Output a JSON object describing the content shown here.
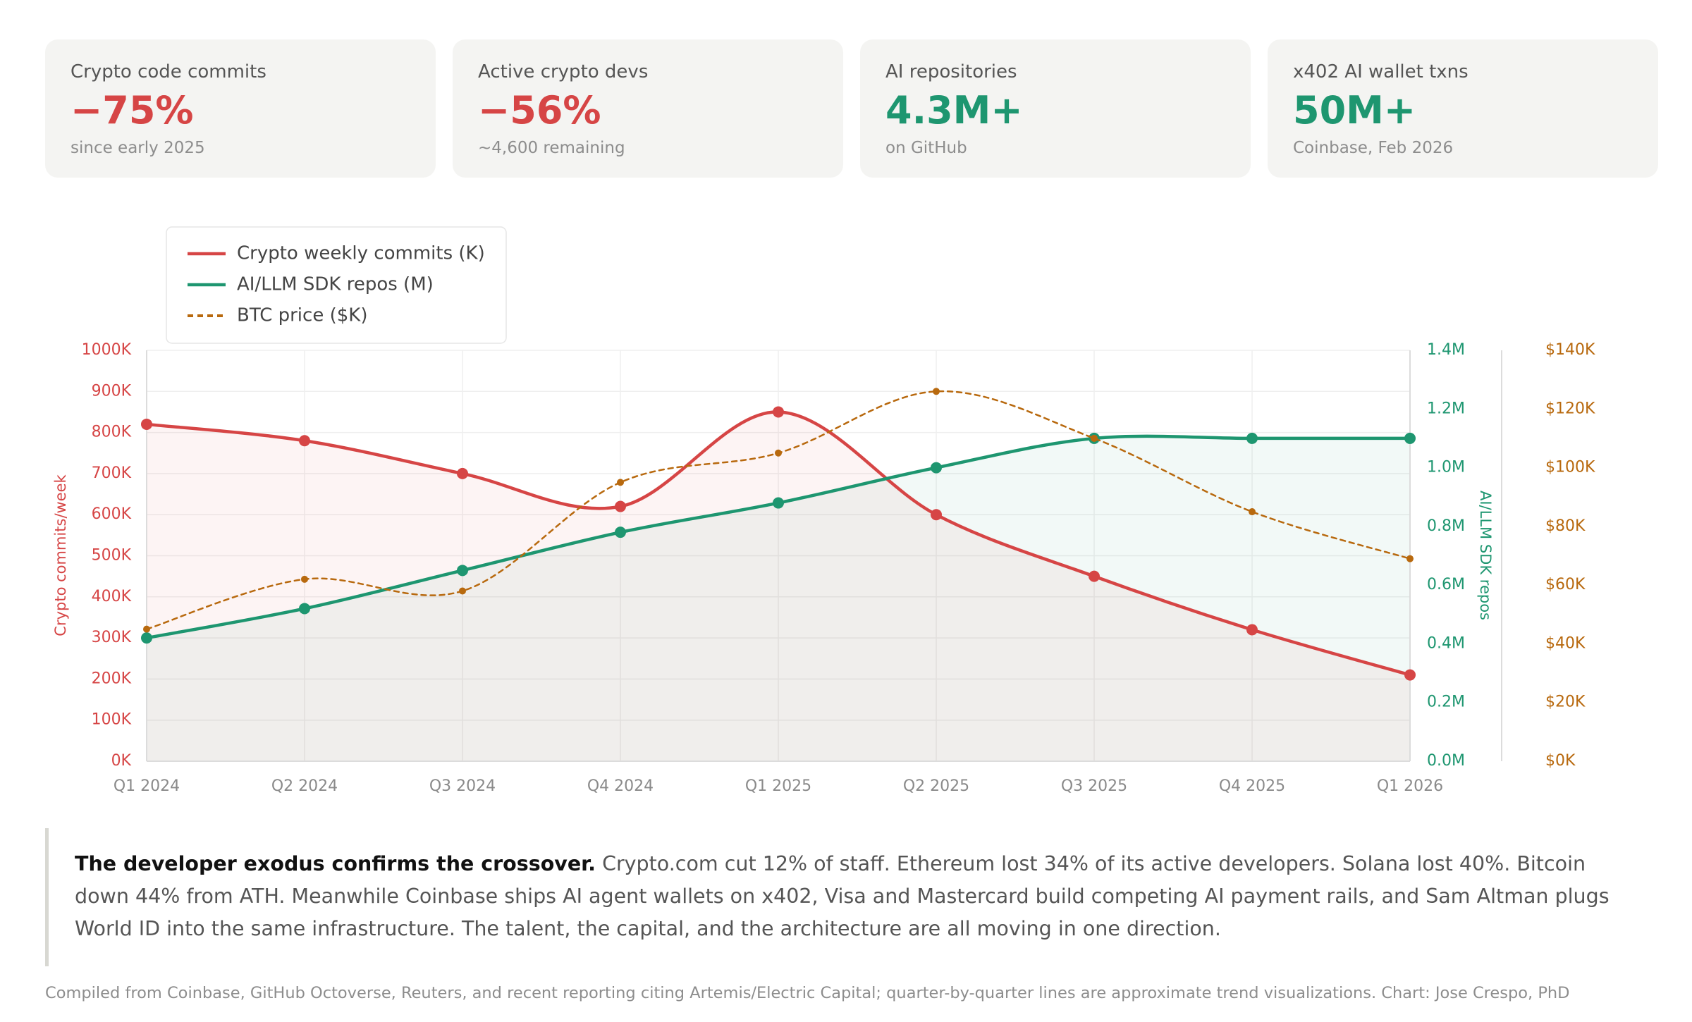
{
  "cards": [
    {
      "label": "Crypto code commits",
      "value": "−75%",
      "sub": "since early 2025",
      "tone": "neg"
    },
    {
      "label": "Active crypto devs",
      "value": "−56%",
      "sub": "~4,600 remaining",
      "tone": "neg"
    },
    {
      "label": "AI repositories",
      "value": "4.3M+",
      "sub": "on GitHub",
      "tone": "pos"
    },
    {
      "label": "x402 AI wallet txns",
      "value": "50M+",
      "sub": "Coinbase, Feb 2026",
      "tone": "pos"
    }
  ],
  "colors": {
    "crypto": "#d64545",
    "ai": "#1e9670",
    "btc": "#b8690e",
    "negative": "#d64545",
    "positive": "#1e9670"
  },
  "chart_data": {
    "type": "line",
    "categories": [
      "Q1 2024",
      "Q2 2024",
      "Q3 2024",
      "Q4 2024",
      "Q1 2025",
      "Q2 2025",
      "Q3 2025",
      "Q4 2025",
      "Q1 2026"
    ],
    "series": [
      {
        "name": "Crypto weekly commits (K)",
        "axis": "left",
        "style": "solid",
        "values": [
          820,
          780,
          700,
          620,
          850,
          600,
          450,
          320,
          210
        ]
      },
      {
        "name": "AI/LLM SDK repos (M)",
        "axis": "right1",
        "style": "solid",
        "values": [
          0.42,
          0.52,
          0.65,
          0.78,
          0.88,
          1.0,
          1.1,
          1.1,
          1.1
        ]
      },
      {
        "name": "BTC price ($K)",
        "axis": "right2",
        "style": "dashed",
        "values": [
          45,
          62,
          58,
          95,
          105,
          126,
          110,
          85,
          69
        ]
      }
    ],
    "axes": {
      "left": {
        "label": "Crypto commits/week",
        "min": 0,
        "max": 1000,
        "ticks": [
          "0K",
          "100K",
          "200K",
          "300K",
          "400K",
          "500K",
          "600K",
          "700K",
          "800K",
          "900K",
          "1000K"
        ]
      },
      "right1": {
        "label": "AI/LLM SDK repos",
        "min": 0,
        "max": 1.4,
        "ticks": [
          "0.0M",
          "0.2M",
          "0.4M",
          "0.6M",
          "0.8M",
          "1.0M",
          "1.2M",
          "1.4M"
        ]
      },
      "right2": {
        "label": "",
        "min": 0,
        "max": 140,
        "ticks": [
          "$0K",
          "$20K",
          "$40K",
          "$60K",
          "$80K",
          "$100K",
          "$120K",
          "$140K"
        ]
      }
    },
    "legend_position": "top-left",
    "grid": true
  },
  "note": {
    "lead": "The developer exodus confirms the crossover.",
    "body": "Crypto.com cut 12% of staff. Ethereum lost 34% of its active developers. Solana lost 40%. Bitcoin down 44% from ATH. Meanwhile Coinbase ships AI agent wallets on x402, Visa and Mastercard build competing AI payment rails, and Sam Altman plugs World ID into the same infrastructure. The talent, the capital, and the architecture are all moving in one direction."
  },
  "footer": "Compiled from Coinbase, GitHub Octoverse, Reuters, and recent reporting citing Artemis/Electric Capital; quarter-by-quarter lines are approximate trend visualizations. Chart: Jose Crespo, PhD"
}
